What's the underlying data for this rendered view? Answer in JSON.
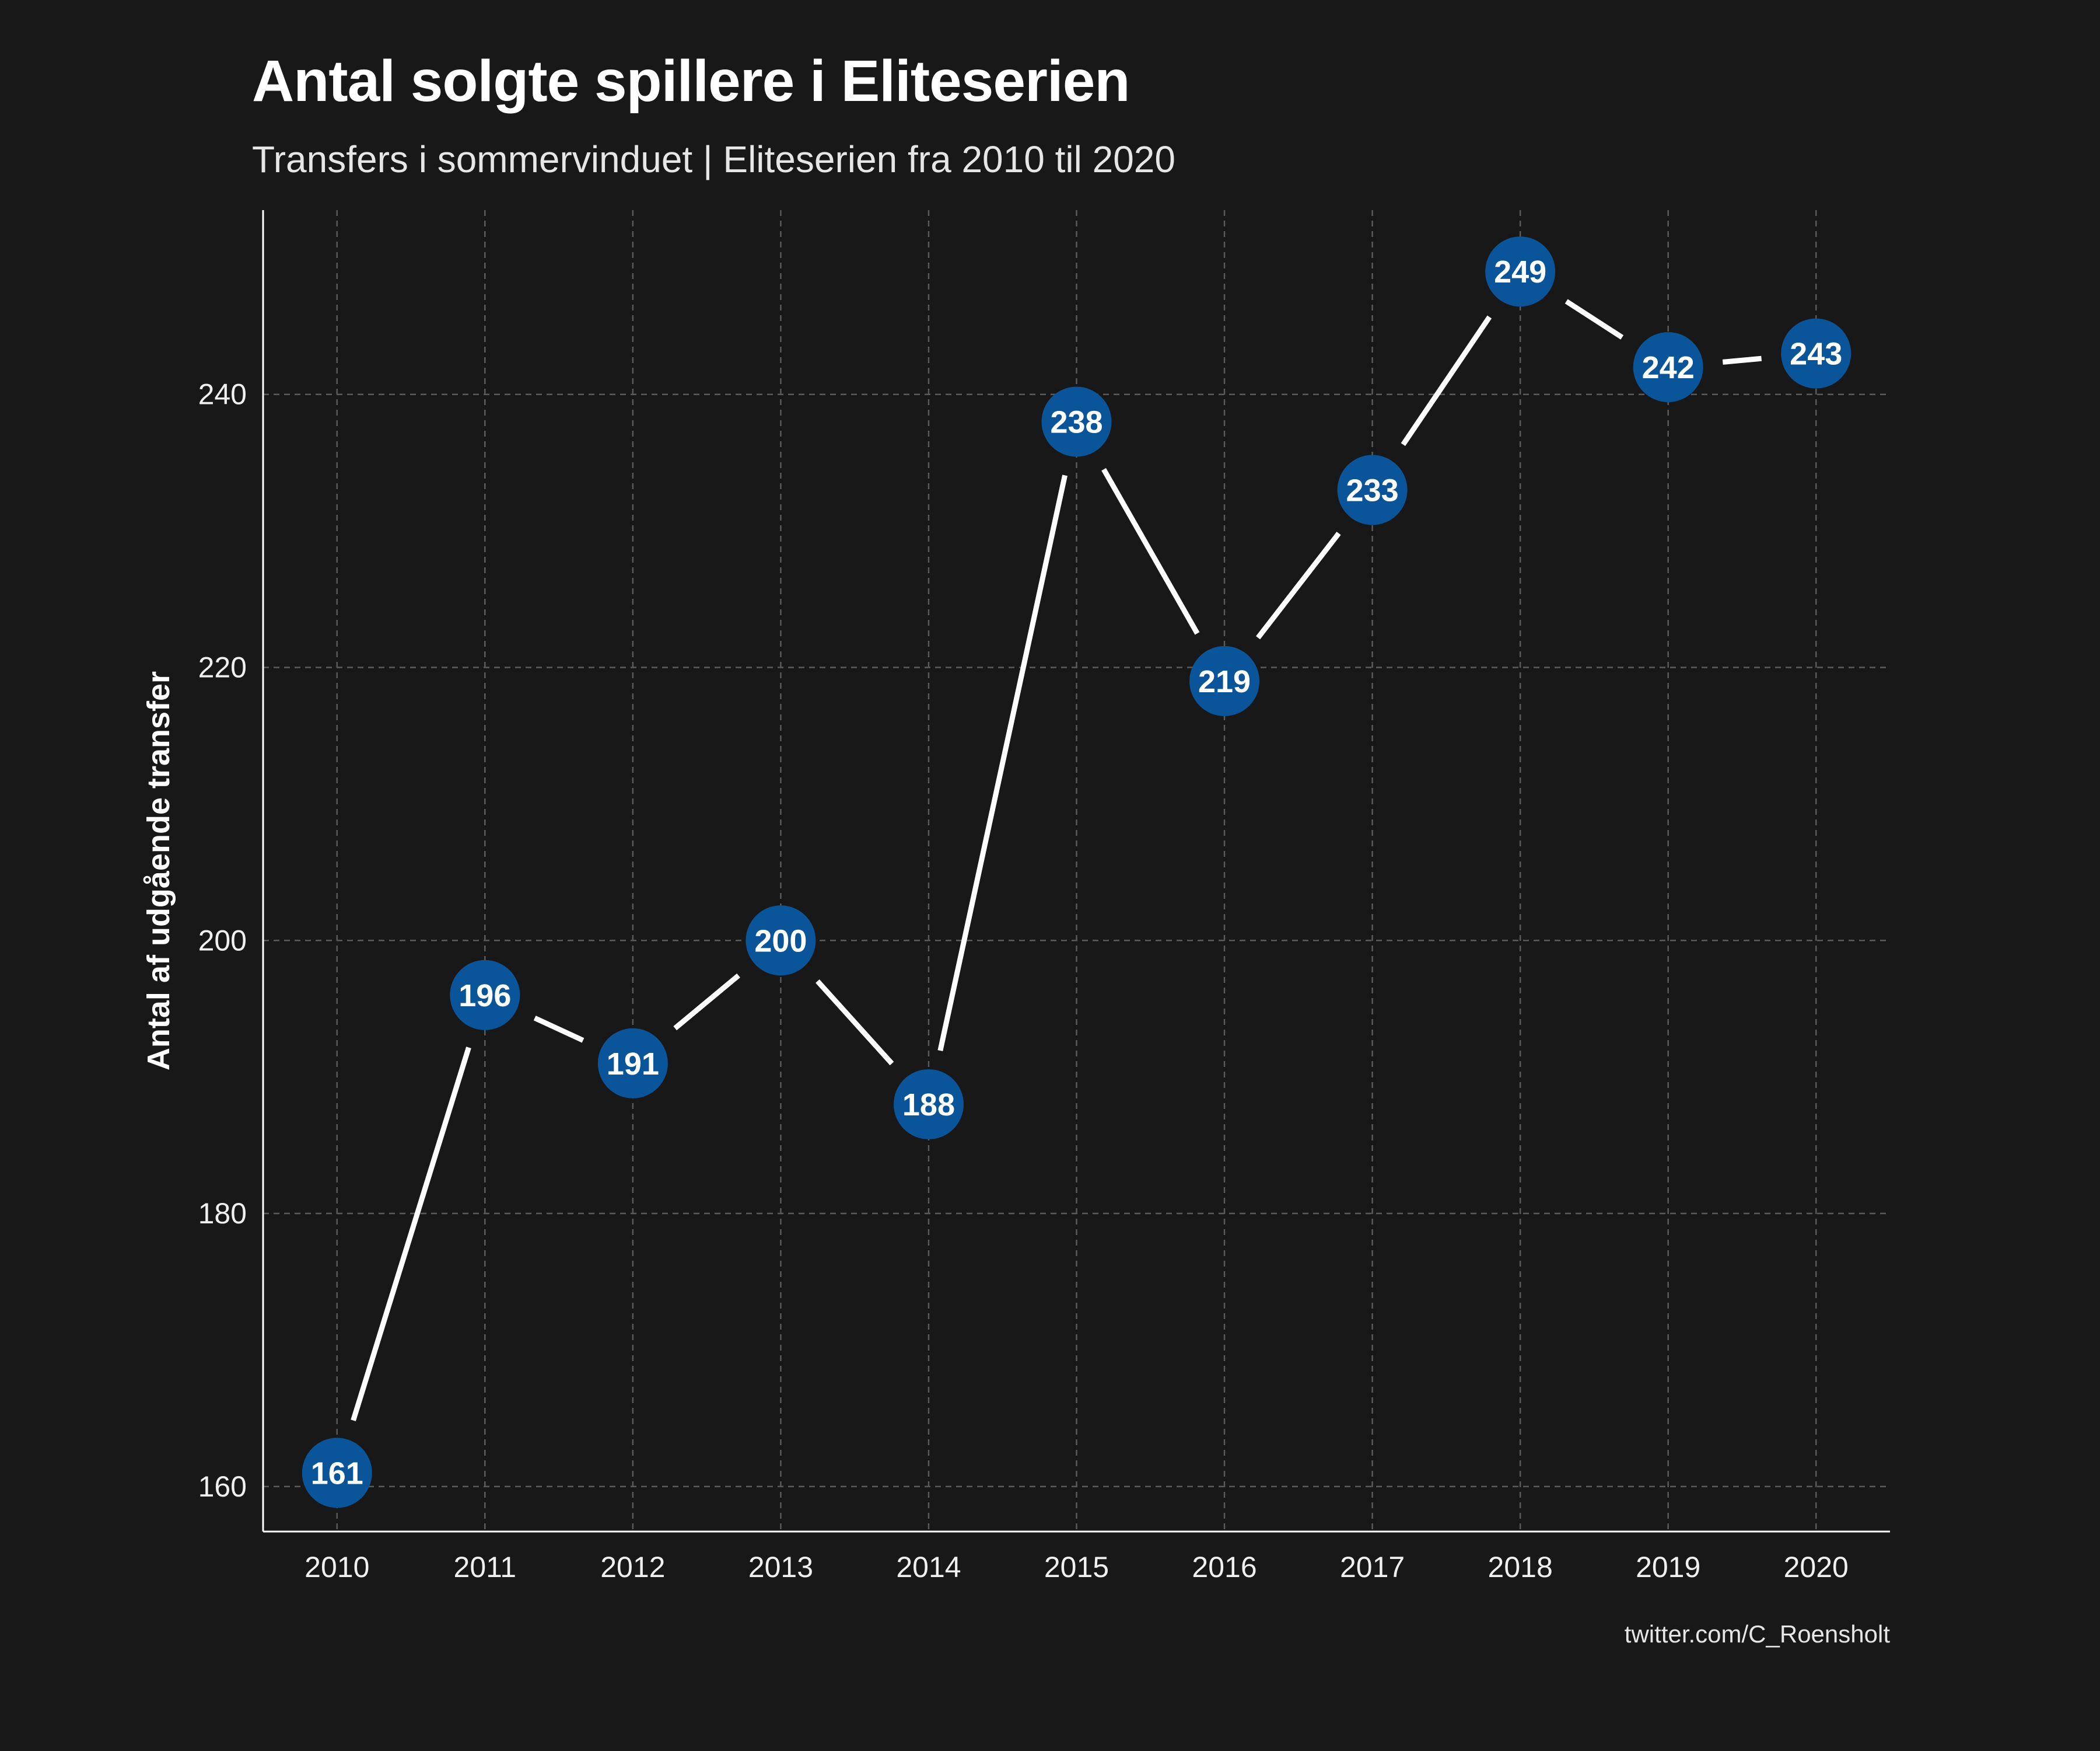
{
  "title": "Antal solgte spillere i Eliteserien",
  "subtitle": "Transfers i sommervinduet | Eliteserien fra 2010 til 2020",
  "caption": "twitter.com/C_Roensholt",
  "colors": {
    "background": "#181818",
    "point_fill": "#0a5499",
    "line": "#ffffff",
    "grid": "#5a5a5a",
    "axis": "#ffffff"
  },
  "chart_data": {
    "type": "line",
    "x": [
      2010,
      2011,
      2012,
      2013,
      2014,
      2015,
      2016,
      2017,
      2018,
      2019,
      2020
    ],
    "series": [
      {
        "values": [
          161,
          196,
          191,
          200,
          188,
          238,
          219,
          233,
          249,
          242,
          243
        ]
      }
    ],
    "data_labels": [
      "161",
      "196",
      "191",
      "200",
      "188",
      "238",
      "219",
      "233",
      "249",
      "242",
      "243"
    ],
    "xlabel": "",
    "ylabel": "Antal af udgående transfer",
    "x_ticks": [
      "2010",
      "2011",
      "2012",
      "2013",
      "2014",
      "2015",
      "2016",
      "2017",
      "2018",
      "2019",
      "2020"
    ],
    "y_ticks": [
      160,
      180,
      200,
      220,
      240
    ],
    "y_tick_labels": [
      "160",
      "180",
      "200",
      "220",
      "240"
    ],
    "xlim": [
      2009.5,
      2020.5
    ],
    "ylim": [
      156.7,
      253.5
    ],
    "grid": true,
    "grid_style": "dashed"
  }
}
